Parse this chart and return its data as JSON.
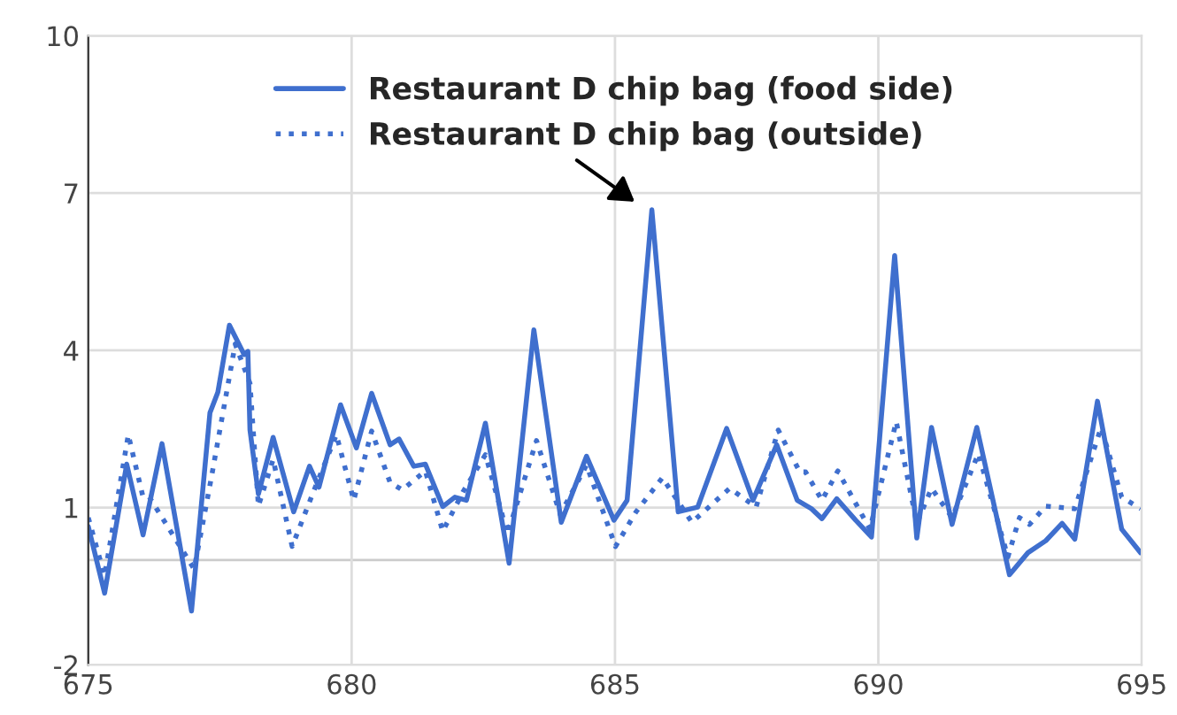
{
  "chart_data": {
    "type": "line",
    "xlim": [
      675,
      695
    ],
    "xticks": [
      675,
      680,
      685,
      690,
      695
    ],
    "ylim": [
      -2,
      10
    ],
    "yticks": [
      -2,
      1,
      4,
      7,
      10
    ],
    "grid": true,
    "legend": "top",
    "ref_lines": [
      {
        "axis": "y",
        "value": 0,
        "color": "#cccccc"
      }
    ],
    "series": [
      {
        "name": "Restaurant D chip bag (food side)",
        "color": "#3f6fce",
        "line_style": "solid",
        "x": [
          675.0,
          675.31,
          675.73,
          676.04,
          676.4,
          676.96,
          677.31,
          677.46,
          677.68,
          677.96,
          678.03,
          678.07,
          678.23,
          678.51,
          678.9,
          679.2,
          679.38,
          679.79,
          680.09,
          680.38,
          680.73,
          680.9,
          681.18,
          681.4,
          681.73,
          681.96,
          682.18,
          682.54,
          682.99,
          683.46,
          683.98,
          684.46,
          684.98,
          685.23,
          685.7,
          686.2,
          686.57,
          687.12,
          687.62,
          688.07,
          688.46,
          688.73,
          688.93,
          689.21,
          689.57,
          689.87,
          690.31,
          690.73,
          691.01,
          691.4,
          691.87,
          692.49,
          692.84,
          693.18,
          693.49,
          693.73,
          694.16,
          694.62,
          694.98
        ],
        "values": [
          0.64,
          -0.63,
          1.83,
          0.48,
          2.22,
          -0.97,
          2.81,
          3.2,
          4.48,
          3.92,
          3.98,
          2.48,
          1.26,
          2.34,
          0.92,
          1.79,
          1.39,
          2.96,
          2.14,
          3.18,
          2.2,
          2.31,
          1.79,
          1.83,
          1.02,
          1.2,
          1.14,
          2.61,
          -0.06,
          4.39,
          0.72,
          1.98,
          0.76,
          1.14,
          6.68,
          0.92,
          1.01,
          2.51,
          1.14,
          2.2,
          1.14,
          0.98,
          0.79,
          1.17,
          0.76,
          0.44,
          5.81,
          0.42,
          2.53,
          0.68,
          2.53,
          -0.28,
          0.14,
          0.37,
          0.7,
          0.4,
          3.03,
          0.59,
          0.14
        ]
      },
      {
        "name": "Restaurant D chip bag (outside)",
        "color": "#3f6fce",
        "line_style": "dotted",
        "x": [
          675.0,
          675.31,
          675.76,
          676.04,
          676.16,
          677.01,
          677.34,
          677.79,
          678.07,
          678.23,
          678.51,
          678.87,
          679.29,
          679.71,
          680.04,
          680.38,
          680.73,
          680.96,
          681.4,
          681.73,
          682.12,
          682.54,
          682.96,
          683.51,
          683.96,
          684.46,
          685.01,
          685.4,
          685.9,
          686.46,
          687.18,
          687.68,
          688.1,
          688.51,
          688.62,
          688.93,
          689.23,
          689.84,
          690.34,
          690.73,
          691.01,
          691.4,
          691.9,
          692.46,
          692.68,
          692.87,
          693.18,
          693.73,
          694.23,
          694.62,
          694.98
        ],
        "values": [
          0.81,
          -0.3,
          2.39,
          1.2,
          1.2,
          -0.17,
          1.59,
          4.12,
          3.37,
          1.03,
          1.92,
          0.26,
          1.34,
          2.39,
          1.14,
          2.46,
          1.48,
          1.34,
          1.7,
          0.55,
          1.31,
          2.01,
          0.5,
          2.28,
          0.87,
          1.81,
          0.26,
          0.92,
          1.57,
          0.72,
          1.37,
          1.01,
          2.48,
          1.68,
          1.68,
          1.14,
          1.7,
          0.59,
          2.64,
          0.7,
          1.37,
          0.81,
          2.03,
          0.06,
          0.81,
          0.68,
          1.03,
          0.98,
          2.53,
          1.2,
          0.98
        ]
      }
    ]
  }
}
